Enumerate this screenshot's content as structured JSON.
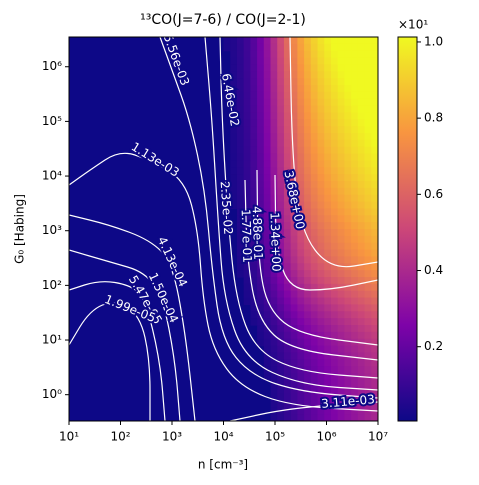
{
  "chart_data": {
    "type": "contour",
    "title": "¹³CO(J=7-6) / CO(J=2-1)",
    "xlabel": "n [cm⁻³]",
    "ylabel": "G₀ [Habing]",
    "xscale": "log",
    "yscale": "log",
    "xlim": [
      10,
      10000000
    ],
    "ylim": [
      0.33,
      3500000
    ],
    "xticks": [
      {
        "value": 10,
        "label": "10¹"
      },
      {
        "value": 100,
        "label": "10²"
      },
      {
        "value": 1000,
        "label": "10³"
      },
      {
        "value": 10000,
        "label": "10⁴"
      },
      {
        "value": 100000,
        "label": "10⁵"
      },
      {
        "value": 1000000,
        "label": "10⁶"
      },
      {
        "value": 10000000,
        "label": "10⁷"
      }
    ],
    "yticks": [
      {
        "value": 1,
        "label": "10⁰"
      },
      {
        "value": 10,
        "label": "10¹"
      },
      {
        "value": 100,
        "label": "10²"
      },
      {
        "value": 1000,
        "label": "10³"
      },
      {
        "value": 10000,
        "label": "10⁴"
      },
      {
        "value": 100000,
        "label": "10⁵"
      },
      {
        "value": 1000000,
        "label": "10⁶"
      }
    ],
    "contours": {
      "color": "#ffffff",
      "levels": [
        0.00556,
        0.0646,
        0.00113,
        0.0235,
        3.68,
        0.488,
        0.177,
        1.34,
        0.000413,
        0.00015,
        5.47e-05,
        1.99e-05,
        0.00311
      ],
      "value_labels": [
        "5.56e-03",
        "6.46e-02",
        "1.13e-03",
        "2.35e-02",
        "3.68e+00",
        "4.88e-01",
        "1.77e-01",
        "1.34e+00",
        "4.13e-04",
        "1.50e-04",
        "5.47e-05",
        "1.99e-05",
        "3.11e-03"
      ]
    },
    "colorbar": {
      "colormap": "plasma",
      "lim": [
        0.005,
        1.013
      ],
      "ticks": [
        0.2,
        0.4,
        0.6,
        0.8,
        {
          "value": 1.0,
          "label": "1.0"
        }
      ],
      "offset_label": "×10¹"
    }
  }
}
